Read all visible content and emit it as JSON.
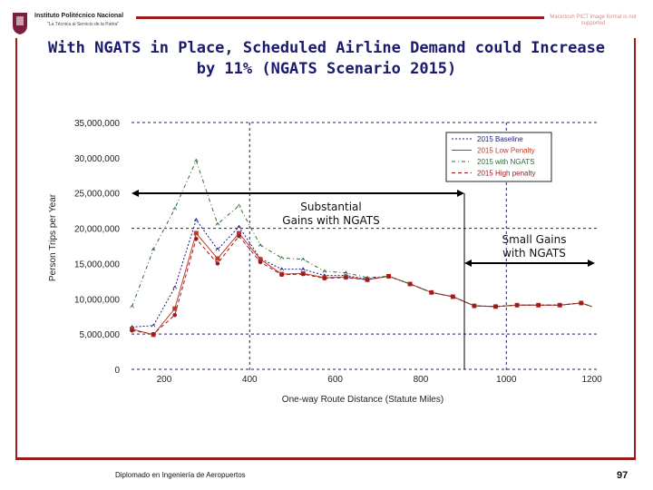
{
  "header": {
    "institution": "Instituto Politécnico Nacional",
    "motto": "\"La Técnica al Servicio de la Patria\"",
    "missing_image_text": "Macintosh PICT image format is not supported"
  },
  "title": "With NGATS in Place, Scheduled Airline Demand could Increase by 11% (NGATS Scenario 2015)",
  "footer": {
    "text": "Diplomado en Ingeniería de Aeropuertos",
    "page": "97"
  },
  "chart_data": {
    "type": "line",
    "title": "",
    "xlabel": "One-way Route  Distance (Statute Miles)",
    "ylabel": "Person Trips per Year",
    "xlim": [
      125,
      1200
    ],
    "ylim": [
      0,
      35000000
    ],
    "x_ticks": [
      "200",
      "400",
      "600",
      "800",
      "1000",
      "1200"
    ],
    "y_ticks": [
      "0",
      "5,000,000",
      "10,000,000",
      "15,000,000",
      "20,000,000",
      "25,000,000",
      "30,000,000",
      "35,000,000"
    ],
    "legend_position": "top-right",
    "x": [
      125,
      175,
      225,
      275,
      325,
      375,
      425,
      475,
      525,
      575,
      625,
      675,
      725,
      775,
      825,
      875,
      925,
      975,
      1025,
      1075,
      1125,
      1175
    ],
    "series": [
      {
        "name": "2015 Baseline",
        "color": "#1a1a8c",
        "values": [
          6000000,
          6200000,
          11600000,
          21200000,
          17000000,
          20200000,
          15700000,
          14200000,
          14200000,
          13300000,
          13300000,
          12800000,
          13200000,
          12100000,
          10900000,
          10300000,
          9000000,
          8900000,
          9100000,
          9100000,
          9100000,
          9400000
        ]
      },
      {
        "name": "2015 Low Penalty",
        "color": "#c0392b",
        "values": [
          5700000,
          4900000,
          8600000,
          19300000,
          15700000,
          19300000,
          15600000,
          13500000,
          13600000,
          13000000,
          13100000,
          12700000,
          13200000,
          12100000,
          10900000,
          10300000,
          9000000,
          8900000,
          9100000,
          9100000,
          9100000,
          9400000
        ]
      },
      {
        "name": "2015 with NGATS",
        "color": "#2e6b3a",
        "values": [
          8900000,
          17000000,
          22800000,
          29600000,
          20600000,
          23200000,
          17600000,
          15800000,
          15600000,
          13900000,
          13700000,
          13000000,
          13200000,
          12100000,
          10900000,
          10300000,
          9000000,
          8900000,
          9100000,
          9100000,
          9100000,
          9400000
        ]
      },
      {
        "name": "2015 High penalty",
        "color": "#9b1c1c",
        "values": [
          5500000,
          5000000,
          7700000,
          18500000,
          15000000,
          18900000,
          15200000,
          13400000,
          13500000,
          12900000,
          13000000,
          12700000,
          13200000,
          12100000,
          10900000,
          10300000,
          9000000,
          8900000,
          9100000,
          9100000,
          9100000,
          9400000
        ]
      }
    ],
    "annotations": [
      {
        "text": "Substantial Gains with NGATS",
        "x_range": [
          125,
          900
        ],
        "y": 25000000
      },
      {
        "text": "Small Gains with NGATS",
        "x_range": [
          900,
          1200
        ],
        "y": 15000000
      }
    ],
    "grid": "dashed reference lines at 5M, 20M, 35M and at 400, 1000 miles"
  }
}
